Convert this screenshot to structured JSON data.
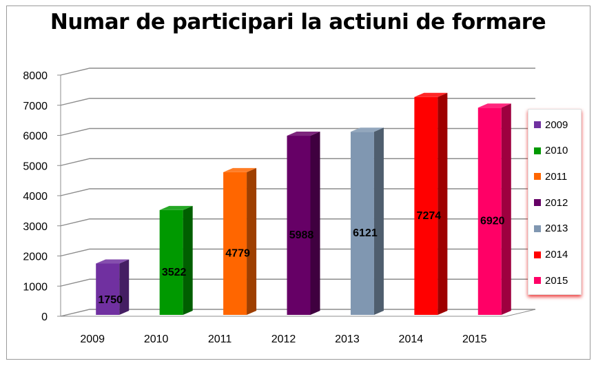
{
  "chart_data": {
    "type": "bar",
    "title": "Numar de participari la actiuni de formare",
    "categories": [
      "2009",
      "2010",
      "2011",
      "2012",
      "2013",
      "2014",
      "2015"
    ],
    "values": [
      1750,
      3522,
      4779,
      5988,
      6121,
      7274,
      6920
    ],
    "colors": [
      "#7030a0",
      "#009900",
      "#ff6600",
      "#660066",
      "#8097b1",
      "#ff0000",
      "#ff0066"
    ],
    "ylim": [
      0,
      8000
    ],
    "yticks": [
      "0",
      "1000",
      "2000",
      "3000",
      "4000",
      "5000",
      "6000",
      "7000",
      "8000"
    ],
    "grid": true,
    "legend": {
      "placement": "right",
      "labels": [
        "2009",
        "2010",
        "2011",
        "2012",
        "2013",
        "2014",
        "2015"
      ]
    },
    "data_labels": [
      "1750",
      "3522",
      "4779",
      "5988",
      "6121",
      "7274",
      "6920"
    ],
    "style": "3d-column"
  }
}
